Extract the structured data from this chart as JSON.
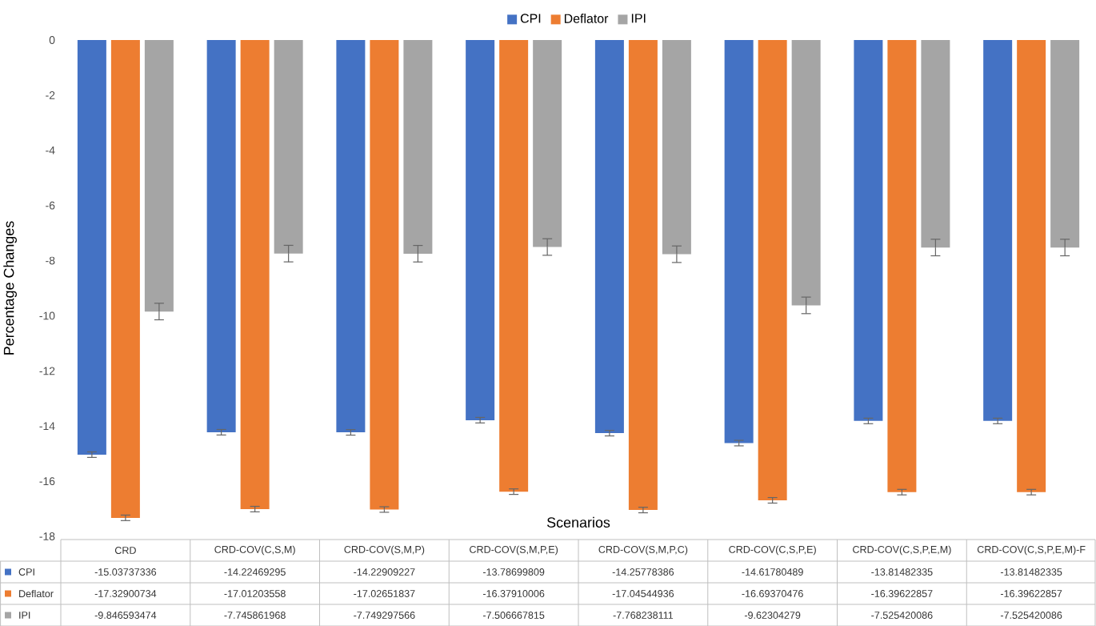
{
  "chart_data": {
    "type": "bar",
    "xlabel": "Scenarios",
    "ylabel": "Percentage Changes",
    "categories": [
      "CRD",
      "CRD-COV(C,S,M)",
      "CRD-COV(S,M,P)",
      "CRD-COV(S,M,P,E)",
      "CRD-COV(S,M,P,C)",
      "CRD-COV(C,S,P,E)",
      "CRD-COV(C,S,P,E,M)",
      "CRD-COV(C,S,P,E,M)-F"
    ],
    "series": [
      {
        "name": "CPI",
        "color": "#4472c4",
        "values": [
          -15.03737336,
          -14.22469295,
          -14.22909227,
          -13.78699809,
          -14.25778386,
          -14.61780489,
          -13.81482335,
          -13.81482335
        ],
        "errors": [
          0.1,
          0.1,
          0.1,
          0.1,
          0.1,
          0.1,
          0.1,
          0.1
        ]
      },
      {
        "name": "Deflator",
        "color": "#ed7d31",
        "values": [
          -17.32900734,
          -17.01203558,
          -17.02651837,
          -16.37910006,
          -17.04544936,
          -16.69370476,
          -16.39622857,
          -16.39622857
        ],
        "errors": [
          0.1,
          0.1,
          0.1,
          0.1,
          0.1,
          0.1,
          0.1,
          0.1
        ]
      },
      {
        "name": "IPI",
        "color": "#a5a5a5",
        "values": [
          -9.846593474,
          -7.745861968,
          -7.749297566,
          -7.506667815,
          -7.768238111,
          -9.62304279,
          -7.525420086,
          -7.525420086
        ],
        "errors": [
          0.3,
          0.3,
          0.3,
          0.3,
          0.3,
          0.3,
          0.3,
          0.3
        ]
      }
    ],
    "ylim": [
      -18,
      0
    ],
    "yticks": [
      -18,
      -16,
      -14,
      -12,
      -10,
      -8,
      -6,
      -4,
      -2,
      0
    ],
    "grid": false,
    "legend": "top",
    "data_labels": true
  }
}
